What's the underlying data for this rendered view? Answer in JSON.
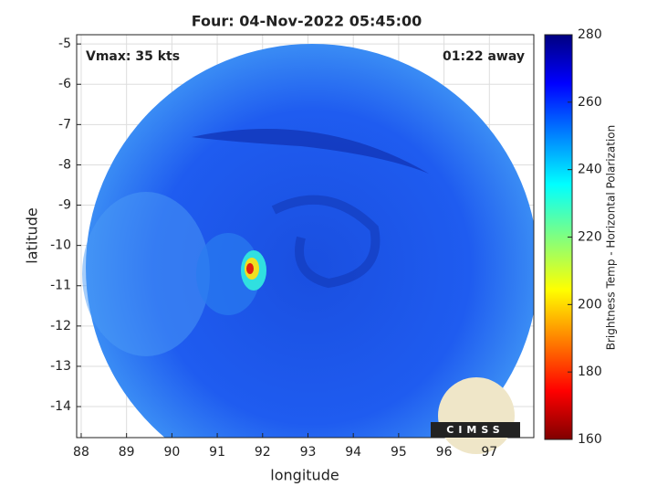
{
  "chart_data": {
    "type": "image",
    "title": "Four: 04-Nov-2022 05:45:00",
    "xlabel": "longitude",
    "ylabel": "latitude",
    "annotations": [
      "Vmax: 35 kts",
      "01:22 away"
    ],
    "xlim": [
      87.9,
      97.98
    ],
    "xticks": [
      88,
      89,
      90,
      91,
      92,
      93,
      94,
      95,
      96,
      97
    ],
    "ylim": [
      -14.77,
      -4.77
    ],
    "yticks": [
      -5,
      -6,
      -7,
      -8,
      -9,
      -10,
      -11,
      -12,
      -13,
      -14
    ],
    "grid": true,
    "colorbar": {
      "label": "Brightness Temp - Horizontal Polarization",
      "lim": [
        160,
        280
      ],
      "ticks": [
        160,
        180,
        200,
        220,
        240,
        260,
        280
      ],
      "colormap": "jet"
    },
    "logo": "CIMSS"
  }
}
